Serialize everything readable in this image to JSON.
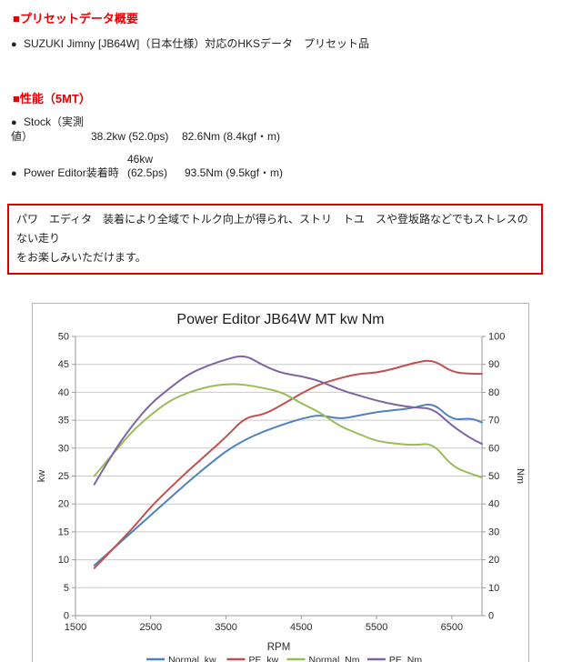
{
  "overview": {
    "heading": "■プリセットデータ概要",
    "item": {
      "marker": "●",
      "text": "SUZUKI Jimny [JB64W]（日本仕様）対応のHKSデータ　プリセット品"
    }
  },
  "performance": {
    "heading": "■性能（5MT）",
    "rows": [
      {
        "marker": "●",
        "label": "Stock（実測値）",
        "kw": "38.2kw (52.0ps)",
        "nm": "82.6Nm (8.4kgf・m)"
      },
      {
        "marker": "●",
        "label": "Power Editor装着時",
        "kw": "46kw (62.5ps)",
        "nm": "93.5Nm (9.5kgf・m)"
      }
    ]
  },
  "notice": {
    "border_color": "#dd0000",
    "line1": "パワ　エディタ　装着により全域でトルク向上が得られ、ストリ　トユ　スや登坂路などでもストレスのない走り",
    "line2": "をお楽しみいただけます。"
  },
  "chart_data": {
    "type": "line",
    "title": "Power Editor  JB64W MT  kw Nm",
    "xlabel": "RPM",
    "ylabel_left": "kw",
    "ylabel_right": "Nm",
    "xlim": [
      1500,
      6900
    ],
    "x_ticks": [
      1500,
      2500,
      3500,
      4500,
      5500,
      6500
    ],
    "ylim_left": [
      0,
      50
    ],
    "ytick_step_left": 5,
    "ylim_right": [
      0,
      100
    ],
    "ytick_step_right": 10,
    "grid": true,
    "legend_position": "bottom",
    "x": [
      1750,
      2000,
      2250,
      2500,
      2750,
      3000,
      3250,
      3500,
      3750,
      4000,
      4250,
      4500,
      4750,
      5000,
      5250,
      5500,
      5750,
      6000,
      6250,
      6500,
      6750,
      6900
    ],
    "series": [
      {
        "name": "Normal_kw",
        "axis": "left",
        "color": "#4F81BD",
        "values": [
          9.0,
          12.0,
          15.0,
          18.0,
          21.0,
          24.0,
          26.8,
          29.5,
          31.5,
          33.0,
          34.2,
          35.3,
          36.0,
          35.2,
          35.8,
          36.5,
          36.8,
          37.2,
          38.2,
          35.0,
          35.4,
          34.6
        ]
      },
      {
        "name": "PE_kw",
        "axis": "left",
        "color": "#C0504D",
        "values": [
          8.5,
          12.0,
          15.5,
          19.5,
          22.8,
          26.0,
          29.0,
          32.0,
          35.5,
          36.0,
          37.8,
          39.8,
          41.5,
          42.5,
          43.3,
          43.5,
          44.3,
          45.3,
          45.9,
          43.6,
          43.3,
          43.3
        ]
      },
      {
        "name": "Normal_Nm",
        "axis": "right",
        "color": "#9BBB59",
        "values": [
          50,
          58,
          66,
          72,
          77,
          80,
          82,
          83,
          82.8,
          81.5,
          80,
          76,
          72.8,
          68,
          65.2,
          62.5,
          61.6,
          61,
          61.8,
          53.5,
          50.8,
          49.5
        ]
      },
      {
        "name": "PE_Nm",
        "axis": "right",
        "color": "#8064A2",
        "values": [
          47,
          58.5,
          68,
          76,
          81.5,
          86.5,
          89.5,
          91.8,
          93.5,
          89.5,
          86.8,
          85.8,
          84,
          81,
          79,
          77,
          75.5,
          74.5,
          74.3,
          68,
          63.5,
          61.5
        ]
      }
    ]
  }
}
